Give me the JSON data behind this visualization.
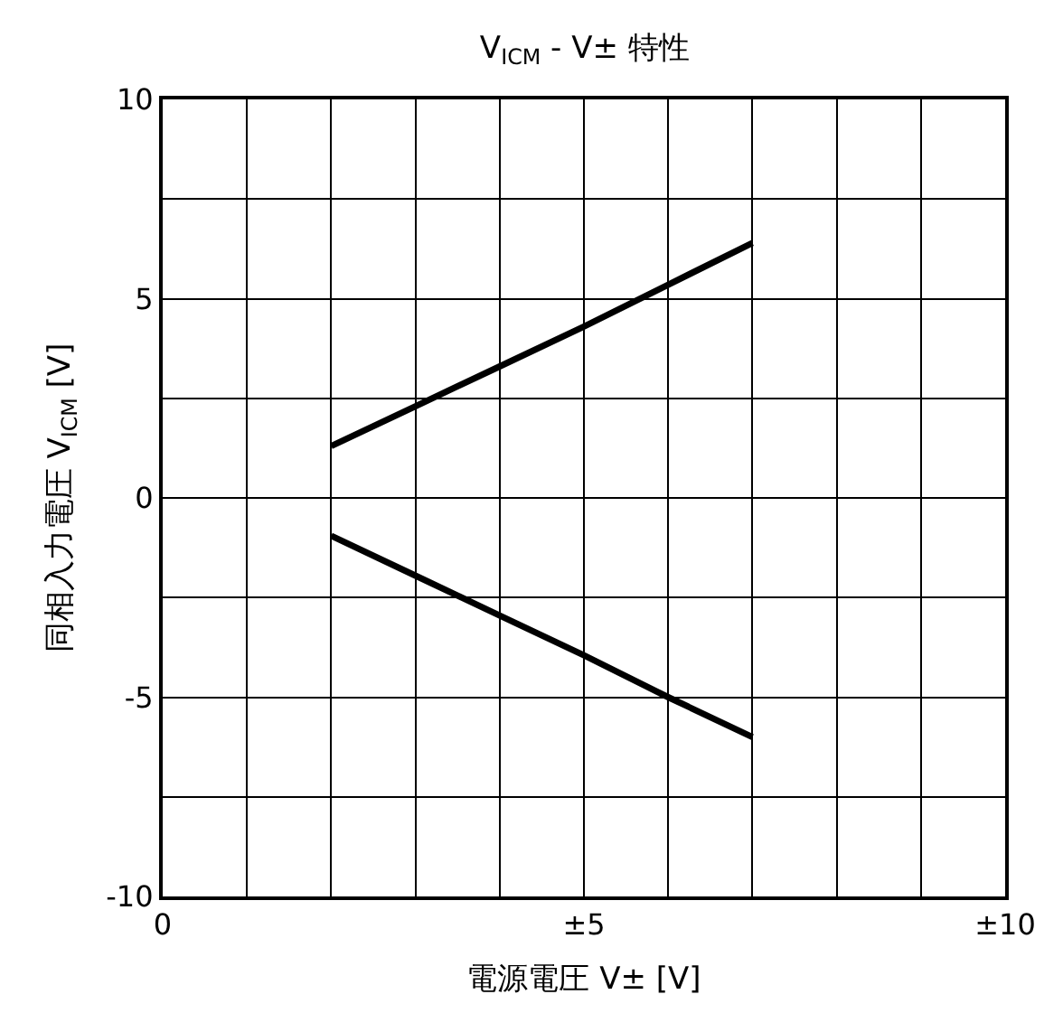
{
  "chart_data": {
    "type": "line",
    "title": "V$_{ICM}$ - V± 特性",
    "xlabel": "電源電圧 V± [V]",
    "ylabel": "同相入力電圧 V$_{ICM}$ [V]",
    "series": [
      {
        "color": "#000000",
        "x": [
          2,
          2.5,
          3,
          4,
          5,
          6,
          7
        ],
        "values": [
          1.3,
          1.8,
          2.3,
          3.3,
          4.3,
          5.35,
          6.4
        ]
      },
      {
        "color": "#000000",
        "x": [
          2,
          3,
          4,
          5,
          6,
          7
        ],
        "values": [
          -0.95,
          -1.95,
          -2.95,
          -3.95,
          -5.0,
          -6.0
        ]
      }
    ],
    "xlim": [
      0,
      10
    ],
    "xticks": [
      0,
      {
        "value": 1,
        "label": null
      },
      {
        "value": 2,
        "label": null
      },
      {
        "value": 3,
        "label": null
      },
      {
        "value": 4,
        "label": null
      },
      {
        "value": 5,
        "label": "±5"
      },
      {
        "value": 6,
        "label": null
      },
      {
        "value": 7,
        "label": null
      },
      {
        "value": 8,
        "label": null
      },
      {
        "value": 9,
        "label": null
      },
      {
        "value": 10,
        "label": "±10"
      }
    ],
    "ylim": [
      -10,
      10
    ],
    "yticks": [
      -10,
      {
        "value": -7.5,
        "label": null
      },
      -5,
      {
        "value": -2.5,
        "label": null
      },
      0,
      {
        "value": 2.5,
        "label": null
      },
      5,
      {
        "value": 7.5,
        "label": null
      },
      10
    ],
    "grid": true,
    "marker": "none",
    "line_style": "solid"
  }
}
